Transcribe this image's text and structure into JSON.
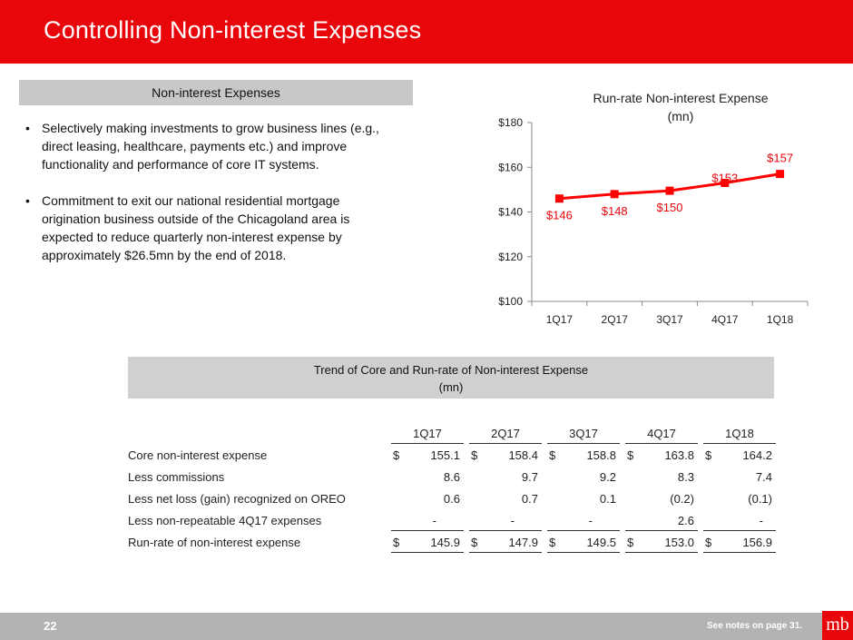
{
  "header": {
    "title": "Controlling Non-interest Expenses"
  },
  "left_section": {
    "heading": "Non-interest Expenses",
    "bullets": [
      "Selectively making investments to grow business lines (e.g., direct leasing, healthcare, payments etc.) and improve functionality and performance of core IT systems.",
      "Commitment to exit our national residential mortgage origination business outside of the Chicagoland area is expected to reduce quarterly non-interest expense by approximately $26.5mn by the end of 2018."
    ]
  },
  "chart_data": {
    "type": "line",
    "title": "Run-rate Non-interest Expense",
    "subtitle": "(mn)",
    "categories": [
      "1Q17",
      "2Q17",
      "3Q17",
      "4Q17",
      "1Q18"
    ],
    "values": [
      146,
      148,
      149.5,
      153,
      157
    ],
    "data_labels": [
      "$146",
      "$148",
      "$150",
      "$153",
      "$157"
    ],
    "ylim": [
      100,
      180
    ],
    "yticks": [
      100,
      120,
      140,
      160,
      180
    ],
    "ytick_labels": [
      "$100",
      "$120",
      "$140",
      "$160",
      "$180"
    ],
    "grid": false,
    "legend": "none",
    "color": "#ff0000"
  },
  "table": {
    "title": "Trend of Core and Run-rate of Non-interest Expense",
    "subtitle": "(mn)",
    "columns": [
      "1Q17",
      "2Q17",
      "3Q17",
      "4Q17",
      "1Q18"
    ],
    "rows": [
      {
        "label": "Core non-interest expense",
        "currency": "$",
        "values": [
          "155.1",
          "158.4",
          "158.8",
          "163.8",
          "164.2"
        ]
      },
      {
        "label": "Less commissions",
        "currency": "",
        "values": [
          "8.6",
          "9.7",
          "9.2",
          "8.3",
          "7.4"
        ]
      },
      {
        "label": "Less net loss (gain) recognized on OREO",
        "currency": "",
        "values": [
          "0.6",
          "0.7",
          "0.1",
          "(0.2)",
          "(0.1)"
        ]
      },
      {
        "label": "Less non-repeatable 4Q17 expenses",
        "currency": "",
        "values": [
          "-",
          "-",
          "-",
          "2.6",
          "-"
        ]
      },
      {
        "label": "Run-rate of non-interest expense",
        "currency": "$",
        "values": [
          "145.9",
          "147.9",
          "149.5",
          "153.0",
          "156.9"
        ]
      }
    ]
  },
  "footer": {
    "page_number": "22",
    "notes": "See notes on page 31.",
    "logo": "mb"
  },
  "colors": {
    "brand_red": "#e8060b",
    "line_red": "#ff0000",
    "gray_bar": "#c8c8c8",
    "footer_gray": "#b3b3b3"
  }
}
